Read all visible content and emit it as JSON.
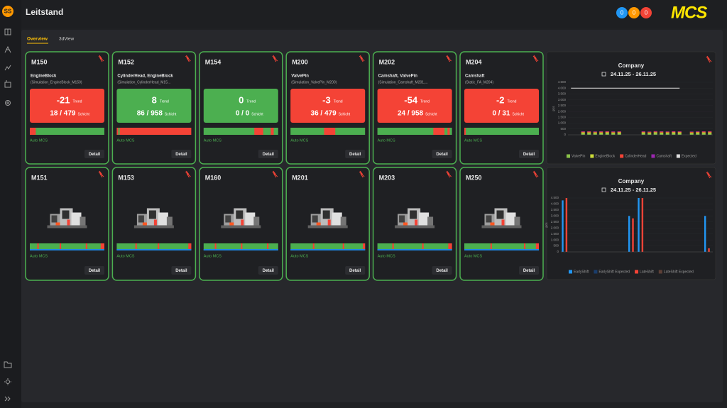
{
  "sidebar": {
    "avatar": "SS"
  },
  "header": {
    "title": "Leitstand",
    "badges": [
      "0",
      "0",
      "0"
    ],
    "badge_colors": [
      "#2196f3",
      "#ff9800",
      "#f44336"
    ],
    "logo": "MCS"
  },
  "tabs": [
    "Overview",
    "3dView"
  ],
  "cards": [
    {
      "name": "M150",
      "product": "EngineBlock",
      "info": "(Simulation_EngineBlock_M150)",
      "trend": -21,
      "trend_label": "Trend",
      "count": "18 / 479",
      "count_label": "Schicht",
      "status_color": "#f44336",
      "timeline": [
        {
          "color": "#4caf50",
          "from": 0,
          "to": 1
        },
        {
          "color": "#f44336",
          "from": 0,
          "to": 0.08
        }
      ],
      "mode": "Auto MCS",
      "button": "Detail"
    },
    {
      "name": "M152",
      "product": "CylinderHead, EngineBlock",
      "info": "(Simulation_CylinderHead_M15...",
      "trend": 8,
      "trend_label": "Trend",
      "count": "86 / 958",
      "count_label": "Schicht",
      "status_color": "#4caf50",
      "timeline": [
        {
          "color": "#f44336",
          "from": 0,
          "to": 1
        },
        {
          "color": "#4caf50",
          "from": 0.02,
          "to": 0.04
        }
      ],
      "mode": "Auto MCS",
      "button": "Detail"
    },
    {
      "name": "M154",
      "product": "",
      "info": "",
      "trend": 0,
      "trend_label": "Trend",
      "count": "0 / 0",
      "count_label": "Schicht",
      "status_color": "#4caf50",
      "timeline": [
        {
          "color": "#4caf50",
          "from": 0,
          "to": 1
        },
        {
          "color": "#f44336",
          "from": 0.68,
          "to": 0.8
        },
        {
          "color": "#f44336",
          "from": 0.9,
          "to": 0.94
        }
      ],
      "mode": "Auto MCS",
      "button": "Detail"
    },
    {
      "name": "M200",
      "product": "ValvePin",
      "info": "(Simulation_ValvePin_M200)",
      "trend": -3,
      "trend_label": "Trend",
      "count": "36 / 479",
      "count_label": "Schicht",
      "status_color": "#f44336",
      "timeline": [
        {
          "color": "#4caf50",
          "from": 0,
          "to": 1
        },
        {
          "color": "#f44336",
          "from": 0.45,
          "to": 0.6
        }
      ],
      "mode": "Auto MCS",
      "button": "Detail"
    },
    {
      "name": "M202",
      "product": "Camshaft, ValvePin",
      "info": "(Simulation_Camshaft_M201,...",
      "trend": -54,
      "trend_label": "Trend",
      "count": "24 / 958",
      "count_label": "Schicht",
      "status_color": "#f44336",
      "timeline": [
        {
          "color": "#4caf50",
          "from": 0,
          "to": 1
        },
        {
          "color": "#f44336",
          "from": 0.75,
          "to": 0.9
        },
        {
          "color": "#f44336",
          "from": 0.94,
          "to": 0.97
        }
      ],
      "mode": "Auto MCS",
      "button": "Detail"
    },
    {
      "name": "M204",
      "product": "Camshaft",
      "info": "(Static_FA_M204)",
      "trend": -2,
      "trend_label": "Trend",
      "count": "0 / 31",
      "count_label": "Schicht",
      "status_color": "#f44336",
      "timeline": [
        {
          "color": "#4caf50",
          "from": 0,
          "to": 1
        },
        {
          "color": "#f44336",
          "from": 0,
          "to": 0.02
        }
      ],
      "mode": "Auto MCS",
      "button": "Detail"
    }
  ],
  "machines": [
    {
      "name": "M151",
      "timeline": [
        {
          "color": "#4caf50",
          "from": 0,
          "to": 1
        },
        {
          "color": "#f44336",
          "from": 0.1,
          "to": 0.12
        },
        {
          "color": "#f44336",
          "from": 0.4,
          "to": 0.42
        },
        {
          "color": "#f44336",
          "from": 0.75,
          "to": 0.77
        },
        {
          "color": "#f44336",
          "from": 0.95,
          "to": 1
        }
      ],
      "mode": "Auto MCS",
      "button": "Detail"
    },
    {
      "name": "M153",
      "timeline": [
        {
          "color": "#4caf50",
          "from": 0,
          "to": 1
        },
        {
          "color": "#f44336",
          "from": 0.25,
          "to": 0.27
        },
        {
          "color": "#f44336",
          "from": 0.55,
          "to": 0.57
        },
        {
          "color": "#f44336",
          "from": 0.96,
          "to": 1
        }
      ],
      "mode": "Auto MCS",
      "button": "Detail"
    },
    {
      "name": "M160",
      "timeline": [
        {
          "color": "#4caf50",
          "from": 0,
          "to": 1
        },
        {
          "color": "#f44336",
          "from": 0.15,
          "to": 0.17
        },
        {
          "color": "#f44336",
          "from": 0.5,
          "to": 0.52
        },
        {
          "color": "#f44336",
          "from": 0.85,
          "to": 0.87
        }
      ],
      "mode": "Auto MCS",
      "button": "Detail"
    },
    {
      "name": "M201",
      "timeline": [
        {
          "color": "#4caf50",
          "from": 0,
          "to": 1
        },
        {
          "color": "#f44336",
          "from": 0.3,
          "to": 0.32
        },
        {
          "color": "#f44336",
          "from": 0.7,
          "to": 0.72
        },
        {
          "color": "#f44336",
          "from": 0.97,
          "to": 1
        }
      ],
      "mode": "Auto MCS",
      "button": "Detail"
    },
    {
      "name": "M203",
      "timeline": [
        {
          "color": "#4caf50",
          "from": 0,
          "to": 1
        },
        {
          "color": "#f44336",
          "from": 0.2,
          "to": 0.22
        },
        {
          "color": "#f44336",
          "from": 0.6,
          "to": 0.62
        },
        {
          "color": "#f44336",
          "from": 0.95,
          "to": 1
        }
      ],
      "mode": "Auto MCS",
      "button": "Detail"
    },
    {
      "name": "M250",
      "timeline": [
        {
          "color": "#4caf50",
          "from": 0,
          "to": 1
        },
        {
          "color": "#f44336",
          "from": 0.35,
          "to": 0.37
        },
        {
          "color": "#f44336",
          "from": 0.8,
          "to": 0.82
        },
        {
          "color": "#f44336",
          "from": 0.96,
          "to": 1
        }
      ],
      "mode": "Auto MCS",
      "button": "Detail"
    }
  ],
  "chart_data": [
    {
      "type": "bar",
      "stacked": true,
      "title": "Company",
      "subtitle": "24.11.25 - 26.11.25",
      "ylabel": "pcs",
      "categories": [
        null,
        null,
        null,
        null,
        null,
        null,
        null,
        null,
        null,
        null,
        null,
        null,
        null,
        null,
        null,
        null,
        null,
        null,
        null,
        null,
        null,
        null,
        null,
        null
      ],
      "ylim": [
        0,
        4500
      ],
      "yticks": [
        0,
        500,
        {
          "value": 1000,
          "label": "1.000"
        },
        {
          "value": 1500,
          "label": "1.500"
        },
        {
          "value": 2000,
          "label": "2.000"
        },
        {
          "value": 2500,
          "label": "2.500"
        },
        {
          "value": 3000,
          "label": "3.000"
        },
        {
          "value": 3500,
          "label": "3.500"
        },
        {
          "value": 4000,
          "label": "4.000"
        },
        {
          "value": 4500,
          "label": "4.500"
        }
      ],
      "series": [
        {
          "name": "ValvePin",
          "color": "#8bc34a",
          "values": [
            0,
            0,
            120,
            130,
            110,
            120,
            125,
            115,
            120,
            0,
            0,
            0,
            120,
            110,
            130,
            120,
            115,
            125,
            120,
            0,
            110,
            120,
            130,
            115
          ]
        },
        {
          "name": "EngineBlock",
          "color": "#cddc39",
          "values": [
            0,
            0,
            90,
            80,
            95,
            85,
            90,
            88,
            92,
            0,
            0,
            0,
            90,
            85,
            95,
            80,
            90,
            88,
            92,
            0,
            85,
            90,
            80,
            95
          ]
        },
        {
          "name": "CylinderHead",
          "color": "#f44336",
          "values": [
            0,
            0,
            60,
            70,
            55,
            65,
            60,
            62,
            58,
            0,
            0,
            0,
            60,
            65,
            55,
            70,
            60,
            62,
            58,
            0,
            60,
            55,
            65,
            70
          ]
        },
        {
          "name": "Camshaft",
          "color": "#9c27b0",
          "values": [
            0,
            0,
            30,
            25,
            35,
            30,
            28,
            32,
            30,
            0,
            0,
            0,
            30,
            25,
            35,
            30,
            28,
            32,
            30,
            0,
            30,
            35,
            25,
            30
          ]
        },
        {
          "name": "Expected",
          "color": "#e0e0e0",
          "kind": "line",
          "values": [
            4000,
            4000,
            4000,
            4000,
            4000,
            4000,
            4000,
            4000,
            4000,
            4000,
            4000,
            4000,
            4000,
            4000,
            4000,
            4000,
            4000,
            4000,
            4000,
            null,
            null,
            null,
            null,
            null
          ]
        }
      ]
    },
    {
      "type": "bar",
      "stacked": false,
      "title": "Company",
      "subtitle": "24.11.25 - 26.11.25",
      "ylabel": "pcs",
      "categories": [
        null,
        null,
        null,
        null,
        null,
        null,
        null,
        null,
        null,
        null,
        null,
        null,
        null,
        null,
        null,
        null
      ],
      "ylim": [
        0,
        4500
      ],
      "yticks": [
        0,
        500,
        {
          "value": 1000,
          "label": "1.000"
        },
        {
          "value": 1500,
          "label": "1.500"
        },
        {
          "value": 2000,
          "label": "2.000"
        },
        {
          "value": 2500,
          "label": "2.500"
        },
        {
          "value": 3000,
          "label": "3.000"
        },
        {
          "value": 3500,
          "label": "3.500"
        },
        {
          "value": 4000,
          "label": "4.000"
        },
        {
          "value": 4500,
          "label": "4.500"
        }
      ],
      "series": [
        {
          "name": "EarlyShift",
          "color": "#2196f3",
          "values": [
            4300,
            0,
            0,
            0,
            0,
            0,
            0,
            3000,
            4500,
            0,
            0,
            0,
            0,
            0,
            0,
            3000
          ]
        },
        {
          "name": "EarlyShift Expected",
          "color": "#1a3d6b",
          "values": [
            0,
            0,
            0,
            0,
            0,
            0,
            0,
            0,
            0,
            0,
            0,
            0,
            0,
            0,
            0,
            0
          ]
        },
        {
          "name": "LateShift",
          "color": "#f44336",
          "values": [
            4500,
            0,
            0,
            0,
            0,
            0,
            0,
            2800,
            4500,
            0,
            0,
            0,
            0,
            0,
            0,
            300
          ]
        },
        {
          "name": "LateShift Expected",
          "color": "#5d4037",
          "values": [
            0,
            0,
            0,
            0,
            0,
            0,
            0,
            0,
            0,
            0,
            0,
            0,
            0,
            0,
            0,
            0
          ]
        }
      ]
    }
  ]
}
